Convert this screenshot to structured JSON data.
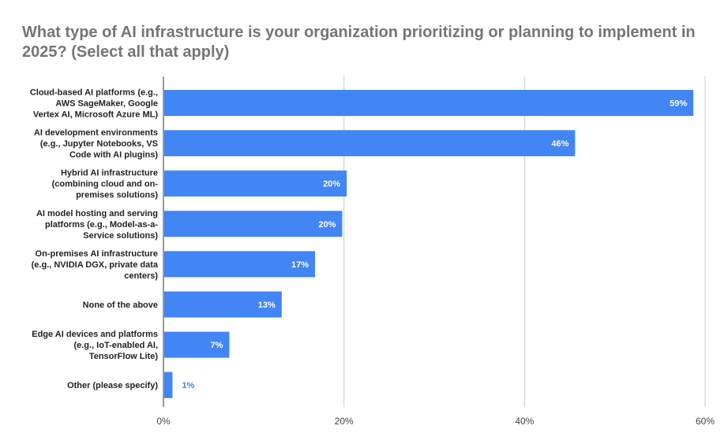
{
  "chart_data": {
    "type": "bar",
    "orientation": "horizontal",
    "title": "What type of AI infrastructure is your organization prioritizing or planning to implement in 2025? (Select all that apply)",
    "categories": [
      "Cloud-based AI platforms (e.g., AWS SageMaker, Google Vertex AI, Microsoft Azure ML)",
      "AI development environments (e.g., Jupyter Notebooks, VS Code with AI plugins)",
      "Hybrid AI infrastructure (combining cloud and on-premises solutions)",
      "AI model hosting and serving platforms (e.g., Model-as-a-Service solutions)",
      "On-premises AI infrastructure (e.g., NVIDIA DGX, private data centers)",
      "None of the above",
      "Edge AI devices and platforms (e.g., IoT-enabled AI, TensorFlow Lite)",
      "Other (please specify)"
    ],
    "category_lines": [
      [
        "Cloud-based AI platforms (e.g.,",
        "AWS SageMaker, Google",
        "Vertex AI, Microsoft Azure ML)"
      ],
      [
        "AI development environments",
        "(e.g., Jupyter Notebooks, VS",
        "Code with AI plugins)"
      ],
      [
        "Hybrid AI infrastructure",
        "(combining cloud and on-",
        "premises solutions)"
      ],
      [
        "AI model hosting and serving",
        "platforms (e.g., Model-as-a-",
        "Service solutions)"
      ],
      [
        "On-premises AI infrastructure",
        "(e.g., NVIDIA DGX, private data",
        "centers)"
      ],
      [
        "None of the above"
      ],
      [
        "Edge AI devices and platforms",
        "(e.g., IoT-enabled AI,",
        "TensorFlow Lite)"
      ],
      [
        "Other (please specify)"
      ]
    ],
    "values": [
      58.7,
      45.6,
      20.3,
      19.8,
      16.8,
      13.1,
      7.3,
      1.0
    ],
    "data_labels": [
      "59%",
      "46%",
      "20%",
      "20%",
      "17%",
      "13%",
      "7%",
      "1%"
    ],
    "xlim": [
      0,
      60
    ],
    "x_ticks": [
      0,
      20,
      40,
      60
    ],
    "x_tick_labels": [
      "0%",
      "20%",
      "40%",
      "60%"
    ],
    "grid": "vertical",
    "legend": "none",
    "bar_color": "#4285f4",
    "label_inside_color": "#ffffff",
    "label_outside_color": "#4285f4"
  }
}
